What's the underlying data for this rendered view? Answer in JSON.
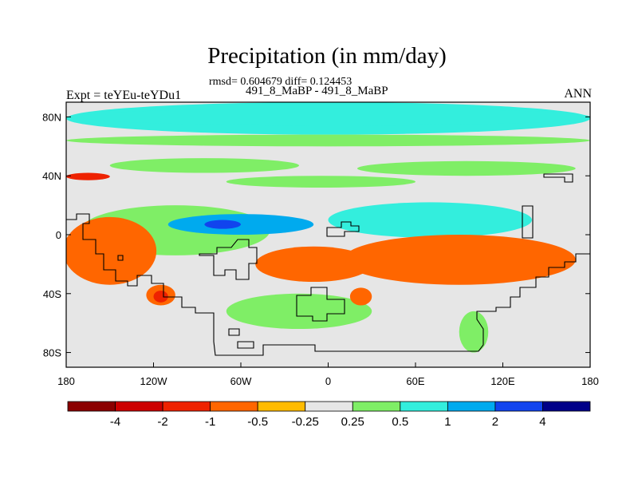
{
  "chart_data": {
    "type": "heatmap",
    "title": "Precipitation (in mm/day)",
    "stats_line": "rmsd= 0.604679 diff= 0.124453",
    "subtitle": "491_8_MaBP - 491_8_MaBP",
    "left_label": "Expt = teYEu-teYDu1",
    "right_label": "ANN",
    "xlim": [
      -180,
      180
    ],
    "ylim": [
      -90,
      90
    ],
    "x_ticks": [
      {
        "value": -180,
        "label": "180"
      },
      {
        "value": -120,
        "label": "120W"
      },
      {
        "value": -60,
        "label": "60W"
      },
      {
        "value": 0,
        "label": "0"
      },
      {
        "value": 60,
        "label": "60E"
      },
      {
        "value": 120,
        "label": "120E"
      },
      {
        "value": 180,
        "label": "180"
      }
    ],
    "y_ticks": [
      {
        "value": 80,
        "label": "80N"
      },
      {
        "value": 40,
        "label": "40N"
      },
      {
        "value": 0,
        "label": "0"
      },
      {
        "value": -40,
        "label": "40S"
      },
      {
        "value": -80,
        "label": "80S"
      }
    ],
    "colorbar": {
      "colors": [
        "#8b0000",
        "#cc0000",
        "#ee2200",
        "#ff6600",
        "#ffbb00",
        "#e6e6e6",
        "#7fee66",
        "#33eedd",
        "#00aaee",
        "#1144ee",
        "#000088"
      ],
      "labels": [
        "-4",
        "-2",
        "-1",
        "-0.5",
        "-0.25",
        "0.25",
        "0.5",
        "1",
        "2",
        "4"
      ]
    },
    "fields": [
      {
        "name": "arctic-band",
        "level": 7,
        "lon": [
          -180,
          180
        ],
        "lat": [
          68,
          90
        ]
      },
      {
        "name": "arctic-core",
        "level": 7,
        "lon": [
          -170,
          180
        ],
        "lat": [
          74,
          86
        ]
      },
      {
        "name": "northern-green-band",
        "level": 6,
        "lon": [
          -180,
          180
        ],
        "lat": [
          60,
          68
        ]
      },
      {
        "name": "midlat-green-a",
        "level": 6,
        "lon": [
          -150,
          -20
        ],
        "lat": [
          42,
          52
        ]
      },
      {
        "name": "midlat-green-b",
        "level": 6,
        "lon": [
          20,
          170
        ],
        "lat": [
          40,
          50
        ]
      },
      {
        "name": "midlat-green-c",
        "level": 6,
        "lon": [
          -70,
          60
        ],
        "lat": [
          32,
          40
        ]
      },
      {
        "name": "nw-pacific-red",
        "level": 2,
        "lon": [
          -180,
          -150
        ],
        "lat": [
          37,
          42
        ]
      },
      {
        "name": "tropical-pacific-green",
        "level": 6,
        "lon": [
          -170,
          -40
        ],
        "lat": [
          -14,
          20
        ]
      },
      {
        "name": "tropical-pacific-blue",
        "level": 8,
        "lon": [
          -110,
          -10
        ],
        "lat": [
          0,
          14
        ]
      },
      {
        "name": "tropical-pacific-navy",
        "level": 9,
        "lon": [
          -85,
          -60
        ],
        "lat": [
          4,
          10
        ]
      },
      {
        "name": "tropical-east-blue",
        "level": 8,
        "lon": [
          20,
          125
        ],
        "lat": [
          4,
          14
        ]
      },
      {
        "name": "tropical-east-cyan",
        "level": 7,
        "lon": [
          0,
          140
        ],
        "lat": [
          -2,
          22
        ]
      },
      {
        "name": "tropical-west-red",
        "level": 2,
        "lon": [
          -180,
          -128
        ],
        "lat": [
          -28,
          8
        ]
      },
      {
        "name": "tropical-west-darkred",
        "level": 1,
        "lon": [
          -172,
          -145
        ],
        "lat": [
          -20,
          0
        ]
      },
      {
        "name": "tropical-west-orange",
        "level": 3,
        "lon": [
          -182,
          -118
        ],
        "lat": [
          -34,
          12
        ]
      },
      {
        "name": "central-red-band",
        "level": 2,
        "lon": [
          -40,
          20
        ],
        "lat": [
          -28,
          -12
        ]
      },
      {
        "name": "central-orange-band",
        "level": 3,
        "lon": [
          -50,
          30
        ],
        "lat": [
          -32,
          -8
        ]
      },
      {
        "name": "south-indian-darkred",
        "level": 1,
        "lon": [
          70,
          115
        ],
        "lat": [
          -24,
          -8
        ]
      },
      {
        "name": "south-indian-red",
        "level": 2,
        "lon": [
          40,
          140
        ],
        "lat": [
          -28,
          -4
        ]
      },
      {
        "name": "south-indian-orange",
        "level": 3,
        "lon": [
          10,
          170
        ],
        "lat": [
          -34,
          0
        ]
      },
      {
        "name": "south-pacific-green",
        "level": 6,
        "lon": [
          -70,
          30
        ],
        "lat": [
          -64,
          -40
        ]
      },
      {
        "name": "southern-ocean-green",
        "level": 6,
        "lon": [
          90,
          110
        ],
        "lat": [
          -80,
          -52
        ]
      },
      {
        "name": "sw-atlantic-orange",
        "level": 3,
        "lon": [
          -125,
          -105
        ],
        "lat": [
          -48,
          -34
        ]
      },
      {
        "name": "sw-atlantic-red",
        "level": 2,
        "lon": [
          -120,
          -110
        ],
        "lat": [
          -46,
          -38
        ]
      },
      {
        "name": "small-orange-east",
        "level": 3,
        "lon": [
          15,
          30
        ],
        "lat": [
          -48,
          -36
        ]
      }
    ]
  }
}
